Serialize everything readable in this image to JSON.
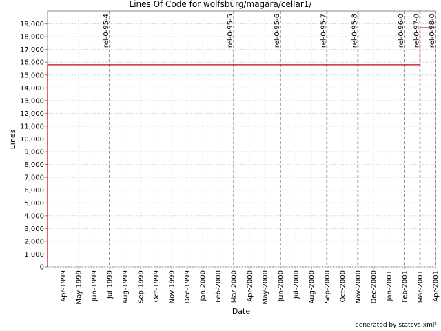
{
  "chart_data": {
    "type": "line",
    "title": "Lines Of Code for wolfsburg/magara/cellar1/",
    "x_label": "Date",
    "y_label": "Lines",
    "footer": "generated by statcvs-xml²",
    "x": [
      "Mar-1999",
      "Mar-1999",
      "Mar-2001",
      "Mar-2001",
      "Apr-2001"
    ],
    "series": [
      {
        "name": "Lines",
        "color": "#cc0000",
        "values": [
          0,
          15800,
          15800,
          18700,
          18700
        ]
      }
    ],
    "xlim": [
      "Mar-1999",
      "Apr-2001"
    ],
    "xticks": [
      "Apr-1999",
      "May-1999",
      "Jun-1999",
      "Jul-1999",
      "Aug-1999",
      "Sep-1999",
      "Oct-1999",
      "Nov-1999",
      "Dec-1999",
      "Jan-2000",
      "Feb-2000",
      "Mar-2000",
      "Apr-2000",
      "May-2000",
      "Jun-2000",
      "Jul-2000",
      "Aug-2000",
      "Sep-2000",
      "Oct-2000",
      "Nov-2000",
      "Dec-2000",
      "Jan-2001",
      "Feb-2001",
      "Mar-2001",
      "Apr-2001"
    ],
    "ylim": [
      0,
      20000
    ],
    "yticks": [
      0,
      {
        "value": 1000,
        "label": "1,000"
      },
      {
        "value": 2000,
        "label": "2,000"
      },
      {
        "value": 3000,
        "label": "3,000"
      },
      {
        "value": 4000,
        "label": "4,000"
      },
      {
        "value": 5000,
        "label": "5,000"
      },
      {
        "value": 6000,
        "label": "6,000"
      },
      {
        "value": 7000,
        "label": "7,000"
      },
      {
        "value": 8000,
        "label": "8,000"
      },
      {
        "value": 9000,
        "label": "9,000"
      },
      {
        "value": 10000,
        "label": "10,000"
      },
      {
        "value": 11000,
        "label": "11,000"
      },
      {
        "value": 12000,
        "label": "12,000"
      },
      {
        "value": 13000,
        "label": "13,000"
      },
      {
        "value": 14000,
        "label": "14,000"
      },
      {
        "value": 15000,
        "label": "15,000"
      },
      {
        "value": 16000,
        "label": "16,000"
      },
      {
        "value": 17000,
        "label": "17,000"
      },
      {
        "value": 18000,
        "label": "18,000"
      },
      {
        "value": 19000,
        "label": "19,000"
      }
    ],
    "grid": true,
    "annotations": [
      {
        "x": "Jul-1999",
        "label": "rel-0-95-4"
      },
      {
        "x": "Mar-2000",
        "label": "rel-0-95-5"
      },
      {
        "x": "Jun-2000",
        "label": "rel-0-95-6"
      },
      {
        "x": "Sep-2000",
        "label": "rel-0-95-7"
      },
      {
        "x": "Nov-2000",
        "label": "rel-0-95-8"
      },
      {
        "x": "Feb-2001",
        "label": "rel-0-96-0"
      },
      {
        "x": "Mar-2001",
        "label": "rel-0-97-0"
      },
      {
        "x": "Apr-2001",
        "label": "rel-0-98-0"
      }
    ]
  }
}
